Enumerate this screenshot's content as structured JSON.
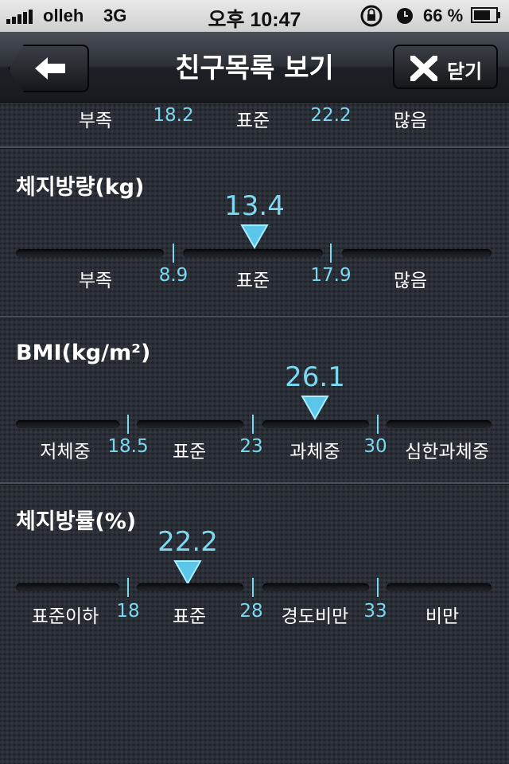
{
  "status_bar": {
    "carrier": "olleh",
    "network": "3G",
    "time": "오후 10:47",
    "battery": "66 %"
  },
  "nav": {
    "title": "친구목록 보기",
    "close_label": "닫기",
    "back_icon": "back-arrow-icon",
    "close_icon": "close-x-icon"
  },
  "accent_color": "#7ad8f0",
  "top_partial": {
    "labels": [
      "부족",
      "18.2",
      "표준",
      "22.2",
      "많음"
    ]
  },
  "sections": [
    {
      "title": "체지방량(kg)",
      "value": "13.4",
      "marker_position": 0.5,
      "categories": [
        "부족",
        "표준",
        "많음"
      ],
      "thresholds": [
        "8.9",
        "17.9"
      ]
    },
    {
      "title": "BMI(kg/m²)",
      "value": "26.1",
      "marker_position": 0.62,
      "categories": [
        "저체중",
        "표준",
        "과체중",
        "심한과체중"
      ],
      "thresholds": [
        "18.5",
        "23",
        "30"
      ]
    },
    {
      "title": "체지방률(%)",
      "value": "22.2",
      "marker_position": 0.36,
      "categories": [
        "표준이하",
        "표준",
        "경도비만",
        "비만"
      ],
      "thresholds": [
        "18",
        "28",
        "33"
      ]
    }
  ]
}
